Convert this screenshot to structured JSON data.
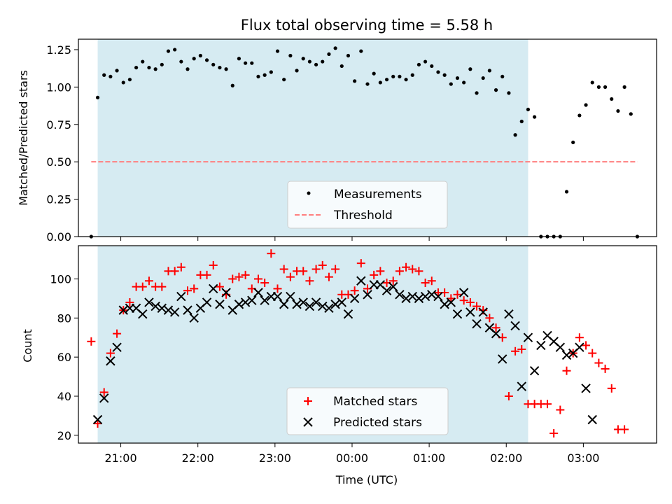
{
  "chart_data": [
    {
      "type": "scatter",
      "title": "Flux total observing time = 5.58 h",
      "xlabel": "",
      "ylabel": "Matched/Predicted stars",
      "xlim": [
        "20:27",
        "03:57"
      ],
      "ylim": [
        0,
        1.32
      ],
      "x_tick_labels": [
        "21:00",
        "22:00",
        "23:00",
        "00:00",
        "01:00",
        "02:00",
        "03:00"
      ],
      "y_ticks": [
        0.0,
        0.25,
        0.5,
        0.75,
        1.0,
        1.25
      ],
      "y_tick_labels": [
        "0.00",
        "0.25",
        "0.50",
        "0.75",
        "1.00",
        "1.25"
      ],
      "shaded_region": {
        "x_start": "20:42",
        "x_end": "02:17",
        "color": "#add8e6"
      },
      "grid": false,
      "legend_placement": "bottom-center",
      "series": [
        {
          "name": "Measurements",
          "marker": "dot",
          "color": "#000000",
          "points": [
            [
              "20:37",
              0.0
            ],
            [
              "20:42",
              0.93
            ],
            [
              "20:47",
              1.08
            ],
            [
              "20:52",
              1.07
            ],
            [
              "20:57",
              1.11
            ],
            [
              "21:02",
              1.03
            ],
            [
              "21:07",
              1.05
            ],
            [
              "21:12",
              1.13
            ],
            [
              "21:17",
              1.17
            ],
            [
              "21:22",
              1.13
            ],
            [
              "21:27",
              1.12
            ],
            [
              "21:32",
              1.15
            ],
            [
              "21:37",
              1.24
            ],
            [
              "21:42",
              1.25
            ],
            [
              "21:47",
              1.17
            ],
            [
              "21:52",
              1.12
            ],
            [
              "21:57",
              1.19
            ],
            [
              "22:02",
              1.21
            ],
            [
              "22:07",
              1.18
            ],
            [
              "22:12",
              1.15
            ],
            [
              "22:17",
              1.13
            ],
            [
              "22:22",
              1.12
            ],
            [
              "22:27",
              1.01
            ],
            [
              "22:32",
              1.19
            ],
            [
              "22:37",
              1.16
            ],
            [
              "22:42",
              1.16
            ],
            [
              "22:47",
              1.07
            ],
            [
              "22:52",
              1.08
            ],
            [
              "22:57",
              1.1
            ],
            [
              "23:02",
              1.24
            ],
            [
              "23:07",
              1.05
            ],
            [
              "23:12",
              1.21
            ],
            [
              "23:17",
              1.11
            ],
            [
              "23:22",
              1.19
            ],
            [
              "23:27",
              1.17
            ],
            [
              "23:32",
              1.15
            ],
            [
              "23:37",
              1.17
            ],
            [
              "23:42",
              1.22
            ],
            [
              "23:47",
              1.26
            ],
            [
              "23:52",
              1.14
            ],
            [
              "23:57",
              1.21
            ],
            [
              "00:02",
              1.04
            ],
            [
              "00:07",
              1.24
            ],
            [
              "00:12",
              1.02
            ],
            [
              "00:17",
              1.09
            ],
            [
              "00:22",
              1.03
            ],
            [
              "00:27",
              1.05
            ],
            [
              "00:32",
              1.07
            ],
            [
              "00:37",
              1.07
            ],
            [
              "00:42",
              1.05
            ],
            [
              "00:47",
              1.08
            ],
            [
              "00:52",
              1.15
            ],
            [
              "00:57",
              1.17
            ],
            [
              "01:02",
              1.14
            ],
            [
              "01:07",
              1.1
            ],
            [
              "01:12",
              1.08
            ],
            [
              "01:17",
              1.02
            ],
            [
              "01:22",
              1.06
            ],
            [
              "01:27",
              1.03
            ],
            [
              "01:32",
              1.12
            ],
            [
              "01:37",
              0.96
            ],
            [
              "01:42",
              1.06
            ],
            [
              "01:47",
              1.11
            ],
            [
              "01:52",
              0.98
            ],
            [
              "01:57",
              1.07
            ],
            [
              "02:02",
              0.96
            ],
            [
              "02:07",
              0.68
            ],
            [
              "02:12",
              0.77
            ],
            [
              "02:17",
              0.85
            ],
            [
              "02:22",
              0.8
            ],
            [
              "02:27",
              0.0
            ],
            [
              "02:32",
              0.0
            ],
            [
              "02:37",
              0.0
            ],
            [
              "02:42",
              0.0
            ],
            [
              "02:47",
              0.3
            ],
            [
              "02:52",
              0.63
            ],
            [
              "02:57",
              0.81
            ],
            [
              "03:02",
              0.88
            ],
            [
              "03:07",
              1.03
            ],
            [
              "03:12",
              1.0
            ],
            [
              "03:17",
              1.0
            ],
            [
              "03:22",
              0.92
            ],
            [
              "03:27",
              0.84
            ],
            [
              "03:32",
              1.0
            ],
            [
              "03:37",
              0.82
            ],
            [
              "03:42",
              0.0
            ]
          ]
        },
        {
          "name": "Threshold",
          "style": "dashed",
          "color": "#ff7f7f",
          "y": 0.5,
          "x_range": [
            "20:37",
            "03:42"
          ]
        }
      ]
    },
    {
      "type": "scatter",
      "title": "",
      "xlabel": "Time (UTC)",
      "ylabel": "Count",
      "xlim": [
        "20:27",
        "03:57"
      ],
      "ylim": [
        16,
        117
      ],
      "x_tick_labels": [
        "21:00",
        "22:00",
        "23:00",
        "00:00",
        "01:00",
        "02:00",
        "03:00"
      ],
      "y_ticks": [
        20,
        40,
        60,
        80,
        100
      ],
      "y_tick_labels": [
        "20",
        "40",
        "60",
        "80",
        "100"
      ],
      "shaded_region": {
        "x_start": "20:42",
        "x_end": "02:17",
        "color": "#add8e6"
      },
      "grid": false,
      "legend_placement": "bottom-center",
      "series": [
        {
          "name": "Matched stars",
          "marker": "plus",
          "color": "#ff0000",
          "points": [
            [
              "20:37",
              68
            ],
            [
              "20:42",
              26
            ],
            [
              "20:47",
              42
            ],
            [
              "20:52",
              62
            ],
            [
              "20:57",
              72
            ],
            [
              "21:02",
              84
            ],
            [
              "21:07",
              88
            ],
            [
              "21:12",
              96
            ],
            [
              "21:17",
              96
            ],
            [
              "21:22",
              99
            ],
            [
              "21:27",
              96
            ],
            [
              "21:32",
              96
            ],
            [
              "21:37",
              104
            ],
            [
              "21:42",
              104
            ],
            [
              "21:47",
              106
            ],
            [
              "21:52",
              94
            ],
            [
              "21:57",
              95
            ],
            [
              "22:02",
              102
            ],
            [
              "22:07",
              102
            ],
            [
              "22:12",
              107
            ],
            [
              "22:17",
              96
            ],
            [
              "22:22",
              92
            ],
            [
              "22:27",
              100
            ],
            [
              "22:32",
              101
            ],
            [
              "22:37",
              102
            ],
            [
              "22:42",
              95
            ],
            [
              "22:47",
              100
            ],
            [
              "22:52",
              98
            ],
            [
              "22:57",
              113
            ],
            [
              "23:02",
              95
            ],
            [
              "23:07",
              105
            ],
            [
              "23:12",
              101
            ],
            [
              "23:17",
              104
            ],
            [
              "23:22",
              104
            ],
            [
              "23:27",
              99
            ],
            [
              "23:32",
              105
            ],
            [
              "23:37",
              107
            ],
            [
              "23:42",
              101
            ],
            [
              "23:47",
              105
            ],
            [
              "23:52",
              92
            ],
            [
              "23:57",
              92
            ],
            [
              "00:02",
              94
            ],
            [
              "00:07",
              108
            ],
            [
              "00:12",
              95
            ],
            [
              "00:17",
              102
            ],
            [
              "00:22",
              104
            ],
            [
              "00:27",
              98
            ],
            [
              "00:32",
              99
            ],
            [
              "00:37",
              104
            ],
            [
              "00:42",
              106
            ],
            [
              "00:47",
              105
            ],
            [
              "00:52",
              104
            ],
            [
              "00:57",
              98
            ],
            [
              "01:02",
              99
            ],
            [
              "01:07",
              93
            ],
            [
              "01:12",
              93
            ],
            [
              "01:17",
              90
            ],
            [
              "01:22",
              92
            ],
            [
              "01:27",
              89
            ],
            [
              "01:32",
              88
            ],
            [
              "01:37",
              86
            ],
            [
              "01:42",
              84
            ],
            [
              "01:47",
              80
            ],
            [
              "01:52",
              75
            ],
            [
              "01:57",
              70
            ],
            [
              "02:02",
              40
            ],
            [
              "02:07",
              63
            ],
            [
              "02:12",
              64
            ],
            [
              "02:17",
              36
            ],
            [
              "02:22",
              36
            ],
            [
              "02:27",
              36
            ],
            [
              "02:32",
              36
            ],
            [
              "02:37",
              21
            ],
            [
              "02:42",
              33
            ],
            [
              "02:47",
              53
            ],
            [
              "02:52",
              62
            ],
            [
              "02:57",
              70
            ],
            [
              "03:02",
              66
            ],
            [
              "03:07",
              62
            ],
            [
              "03:12",
              57
            ],
            [
              "03:17",
              54
            ],
            [
              "03:22",
              44
            ],
            [
              "03:27",
              23
            ],
            [
              "03:32",
              23
            ]
          ]
        },
        {
          "name": "Predicted stars",
          "marker": "x",
          "color": "#000000",
          "points": [
            [
              "20:42",
              28
            ],
            [
              "20:47",
              39
            ],
            [
              "20:52",
              58
            ],
            [
              "20:57",
              65
            ],
            [
              "21:02",
              84
            ],
            [
              "21:07",
              85
            ],
            [
              "21:12",
              85
            ],
            [
              "21:17",
              82
            ],
            [
              "21:22",
              88
            ],
            [
              "21:27",
              86
            ],
            [
              "21:32",
              85
            ],
            [
              "21:37",
              84
            ],
            [
              "21:42",
              83
            ],
            [
              "21:47",
              91
            ],
            [
              "21:52",
              84
            ],
            [
              "21:57",
              80
            ],
            [
              "22:02",
              85
            ],
            [
              "22:07",
              88
            ],
            [
              "22:12",
              95
            ],
            [
              "22:17",
              87
            ],
            [
              "22:22",
              93
            ],
            [
              "22:27",
              84
            ],
            [
              "22:32",
              87
            ],
            [
              "22:37",
              88
            ],
            [
              "22:42",
              89
            ],
            [
              "22:47",
              93
            ],
            [
              "22:52",
              89
            ],
            [
              "22:57",
              91
            ],
            [
              "23:02",
              91
            ],
            [
              "23:07",
              87
            ],
            [
              "23:12",
              91
            ],
            [
              "23:17",
              87
            ],
            [
              "23:22",
              88
            ],
            [
              "23:27",
              86
            ],
            [
              "23:32",
              88
            ],
            [
              "23:37",
              86
            ],
            [
              "23:42",
              85
            ],
            [
              "23:47",
              87
            ],
            [
              "23:52",
              88
            ],
            [
              "23:57",
              82
            ],
            [
              "00:02",
              90
            ],
            [
              "00:07",
              99
            ],
            [
              "00:12",
              92
            ],
            [
              "00:17",
              97
            ],
            [
              "00:22",
              97
            ],
            [
              "00:27",
              94
            ],
            [
              "00:32",
              96
            ],
            [
              "00:37",
              92
            ],
            [
              "00:42",
              90
            ],
            [
              "00:47",
              91
            ],
            [
              "00:52",
              90
            ],
            [
              "00:57",
              91
            ],
            [
              "01:02",
              92
            ],
            [
              "01:07",
              91
            ],
            [
              "01:12",
              87
            ],
            [
              "01:17",
              88
            ],
            [
              "01:22",
              82
            ],
            [
              "01:27",
              93
            ],
            [
              "01:32",
              83
            ],
            [
              "01:37",
              77
            ],
            [
              "01:42",
              83
            ],
            [
              "01:47",
              75
            ],
            [
              "01:52",
              72
            ],
            [
              "01:57",
              59
            ],
            [
              "02:02",
              82
            ],
            [
              "02:07",
              76
            ],
            [
              "02:12",
              45
            ],
            [
              "02:17",
              70
            ],
            [
              "02:22",
              53
            ],
            [
              "02:27",
              66
            ],
            [
              "02:32",
              71
            ],
            [
              "02:37",
              68
            ],
            [
              "02:42",
              65
            ],
            [
              "02:47",
              61
            ],
            [
              "02:52",
              62
            ],
            [
              "02:57",
              65
            ],
            [
              "03:02",
              44
            ],
            [
              "03:07",
              28
            ]
          ]
        }
      ]
    }
  ]
}
